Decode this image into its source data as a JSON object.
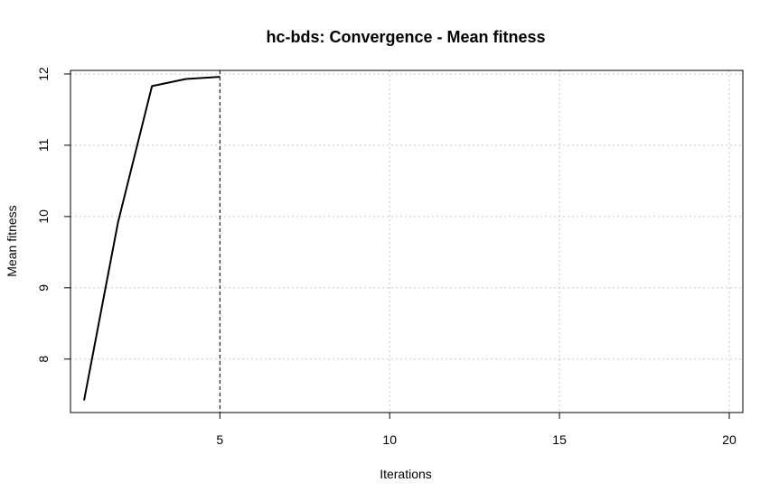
{
  "chart_data": {
    "type": "line",
    "title": "hc-bds: Convergence - Mean fitness",
    "xlabel": "Iterations",
    "ylabel": "Mean fitness",
    "xlim": [
      0.6,
      20.4
    ],
    "ylim": [
      7.25,
      12.05
    ],
    "x_ticks": [
      5,
      10,
      15,
      20
    ],
    "y_ticks": [
      8,
      9,
      10,
      11,
      12
    ],
    "grid": true,
    "series": [
      {
        "x": [
          1,
          2,
          3,
          4,
          5
        ],
        "values": [
          7.42,
          9.92,
          11.83,
          11.93,
          11.96
        ],
        "color": "#000000"
      }
    ],
    "vline_x": 5
  }
}
